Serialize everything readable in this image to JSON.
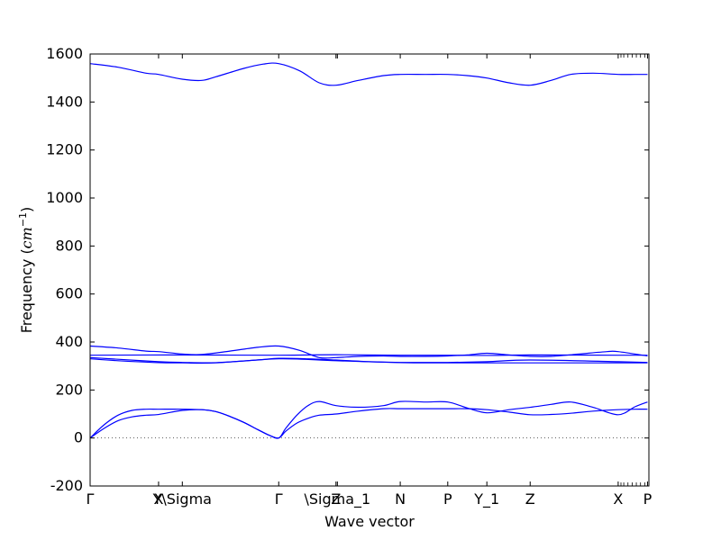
{
  "chart_data": {
    "type": "line",
    "title": "",
    "xlabel": "Wave vector",
    "ylabel": {
      "prefix": "Frequency (",
      "math": "cm",
      "exponent": "−1",
      "suffix": ")"
    },
    "ylim": [
      -200,
      1600
    ],
    "yticks": [
      -200,
      0,
      200,
      400,
      600,
      800,
      1000,
      1200,
      1400,
      1600
    ],
    "xlim": [
      0,
      2.0
    ],
    "xticks": [
      {
        "pos": 0.0,
        "label": "Γ"
      },
      {
        "pos": 0.245,
        "label": "X"
      },
      {
        "pos": 0.33,
        "label": "Y\\Sigma"
      },
      {
        "pos": 0.675,
        "label": "Γ"
      },
      {
        "pos": 0.88,
        "label": "Z"
      },
      {
        "pos": 0.885,
        "label": "\\Sigma_1"
      },
      {
        "pos": 1.11,
        "label": "N"
      },
      {
        "pos": 1.28,
        "label": "P"
      },
      {
        "pos": 1.42,
        "label": "Y_1"
      },
      {
        "pos": 1.575,
        "label": "Z"
      },
      {
        "pos": 1.89,
        "label": "X"
      },
      {
        "pos": 1.995,
        "label": "P"
      }
    ],
    "zero_line": true,
    "line_color": "#0000ff",
    "series": [
      {
        "x": [
          0,
          0.1,
          0.2,
          0.245,
          0.33,
          0.4,
          0.45,
          0.55,
          0.62,
          0.675,
          0.75,
          0.82,
          0.88,
          0.96,
          1.05,
          1.11,
          1.2,
          1.28,
          1.35,
          1.42,
          1.5,
          1.575,
          1.65,
          1.72,
          1.8,
          1.89,
          1.95,
          1.995
        ],
        "y": [
          1560,
          1545,
          1520,
          1515,
          1495,
          1490,
          1505,
          1540,
          1558,
          1560,
          1530,
          1480,
          1470,
          1490,
          1510,
          1515,
          1515,
          1515,
          1510,
          1500,
          1480,
          1470,
          1490,
          1515,
          1520,
          1515,
          1515,
          1515
        ]
      },
      {
        "x": [
          0,
          0.1,
          0.2,
          0.245,
          0.33,
          0.4,
          0.5,
          0.6,
          0.675,
          0.75,
          0.82,
          0.88,
          0.96,
          1.05,
          1.11,
          1.2,
          1.28,
          1.35,
          1.42,
          1.5,
          1.575,
          1.65,
          1.75,
          1.85,
          1.89,
          1.995
        ],
        "y": [
          383,
          375,
          362,
          360,
          350,
          348,
          362,
          378,
          383,
          365,
          335,
          335,
          340,
          342,
          340,
          340,
          342,
          346,
          353,
          346,
          340,
          340,
          350,
          360,
          360,
          342
        ]
      },
      {
        "x": [
          0,
          0.3,
          0.675,
          0.88,
          1.11,
          1.28,
          1.42,
          1.575,
          1.89,
          1.995
        ],
        "y": [
          345,
          346,
          345,
          347,
          345,
          345,
          344,
          346,
          345,
          345
        ]
      },
      {
        "x": [
          0,
          0.1,
          0.245,
          0.33,
          0.45,
          0.6,
          0.675,
          0.78,
          0.88,
          1.0,
          1.11,
          1.28,
          1.42,
          1.575,
          1.89,
          1.995
        ],
        "y": [
          335,
          328,
          318,
          315,
          314,
          325,
          332,
          330,
          325,
          318,
          315,
          315,
          318,
          325,
          318,
          315
        ]
      },
      {
        "x": [
          0,
          0.1,
          0.245,
          0.33,
          0.45,
          0.675,
          0.88,
          1.11,
          1.28,
          1.575,
          1.89,
          1.995
        ],
        "y": [
          330,
          322,
          314,
          313,
          313,
          330,
          322,
          314,
          313,
          313,
          313,
          313
        ]
      },
      {
        "x": [
          0,
          0.05,
          0.1,
          0.15,
          0.2,
          0.245,
          0.33,
          0.4,
          0.45,
          0.5,
          0.55,
          0.6,
          0.64,
          0.675,
          0.7,
          0.74,
          0.78,
          0.82,
          0.88,
          0.96,
          1.05,
          1.11,
          1.2,
          1.28,
          1.35,
          1.42,
          1.5,
          1.575,
          1.65,
          1.72,
          1.8,
          1.89,
          1.95,
          1.995
        ],
        "y": [
          0,
          55,
          95,
          115,
          120,
          120,
          120,
          118,
          110,
          90,
          65,
          35,
          12,
          0,
          40,
          95,
          135,
          152,
          135,
          128,
          135,
          152,
          150,
          150,
          125,
          105,
          118,
          128,
          140,
          150,
          128,
          97,
          130,
          150
        ]
      },
      {
        "x": [
          0,
          0.05,
          0.1,
          0.15,
          0.2,
          0.245,
          0.33,
          0.4,
          0.45,
          0.5,
          0.55,
          0.6,
          0.64,
          0.675,
          0.7,
          0.74,
          0.78,
          0.82,
          0.88,
          0.96,
          1.05,
          1.11,
          1.2,
          1.28,
          1.35,
          1.42,
          1.5,
          1.575,
          1.65,
          1.72,
          1.8,
          1.89,
          1.95,
          1.995
        ],
        "y": [
          0,
          40,
          72,
          88,
          95,
          98,
          115,
          118,
          110,
          90,
          65,
          35,
          12,
          0,
          28,
          62,
          82,
          95,
          100,
          112,
          122,
          122,
          122,
          122,
          122,
          118,
          108,
          97,
          98,
          103,
          112,
          118,
          120,
          120
        ]
      }
    ]
  }
}
